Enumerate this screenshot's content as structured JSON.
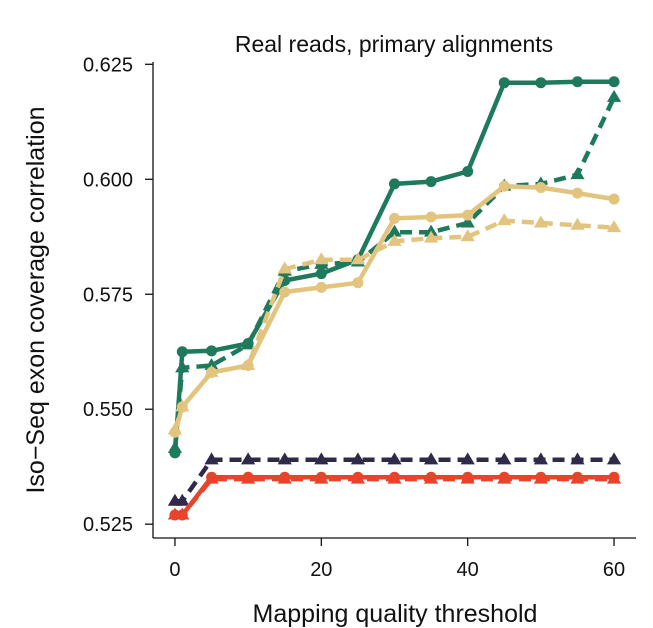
{
  "chart_data": {
    "type": "line",
    "title": "Real reads, primary alignments",
    "xlabel": "Mapping quality threshold",
    "ylabel": "Iso−Seq exon coverage correlation",
    "xlim": [
      -3,
      63
    ],
    "ylim": [
      0.522,
      0.6255
    ],
    "x_ticks": [
      0,
      20,
      40,
      60
    ],
    "y_ticks": [
      0.525,
      0.55,
      0.575,
      0.6,
      0.625
    ],
    "x_tick_labels": [
      "0",
      "20",
      "40",
      "60"
    ],
    "y_tick_labels": [
      "0.525",
      "0.550",
      "0.575",
      "0.600",
      "0.625"
    ],
    "grid": false,
    "legend": "none",
    "x": [
      0,
      1,
      5,
      10,
      15,
      20,
      25,
      30,
      35,
      40,
      45,
      50,
      55,
      60
    ],
    "series": [
      {
        "color": "#1e7a5a",
        "line": "solid",
        "marker": "circle",
        "values": [
          0.5405,
          0.5625,
          0.5627,
          0.5643,
          0.578,
          0.5795,
          0.5825,
          0.599,
          0.5995,
          0.6017,
          0.621,
          0.621,
          0.6212,
          0.6212
        ]
      },
      {
        "color": "#1e7a5a",
        "line": "dashed",
        "marker": "triangle",
        "values": [
          0.5415,
          0.559,
          0.5595,
          0.564,
          0.58,
          0.5815,
          0.582,
          0.5885,
          0.5885,
          0.5905,
          0.5985,
          0.599,
          0.601,
          0.6178
        ]
      },
      {
        "color": "#e2c47e",
        "line": "solid",
        "marker": "circle",
        "values": [
          0.545,
          0.5505,
          0.558,
          0.5595,
          0.5755,
          0.5765,
          0.5775,
          0.5915,
          0.5918,
          0.5922,
          0.5985,
          0.5982,
          0.597,
          0.5957
        ]
      },
      {
        "color": "#e2c47e",
        "line": "dashed",
        "marker": "triangle",
        "values": [
          0.5455,
          0.5505,
          0.558,
          0.5595,
          0.5805,
          0.5825,
          0.5825,
          0.5865,
          0.5872,
          0.5875,
          0.591,
          0.5905,
          0.59,
          0.5895
        ]
      },
      {
        "color": "#2f2a4a",
        "line": "dashed",
        "marker": "triangle",
        "values": [
          0.53,
          0.53,
          0.539,
          0.539,
          0.539,
          0.539,
          0.539,
          0.539,
          0.539,
          0.539,
          0.539,
          0.539,
          0.539,
          0.539
        ]
      },
      {
        "color": "#e8442c",
        "line": "solid",
        "marker": "circle",
        "values": [
          0.527,
          0.527,
          0.5352,
          0.5352,
          0.5352,
          0.5352,
          0.5352,
          0.5352,
          0.5352,
          0.5352,
          0.5352,
          0.5352,
          0.5352,
          0.5352
        ]
      },
      {
        "color": "#e8442c",
        "line": "dashed",
        "marker": "triangle",
        "values": [
          0.527,
          0.527,
          0.5348,
          0.5348,
          0.5348,
          0.5348,
          0.5348,
          0.5348,
          0.5348,
          0.5348,
          0.5348,
          0.5348,
          0.5348,
          0.5348
        ]
      }
    ]
  }
}
